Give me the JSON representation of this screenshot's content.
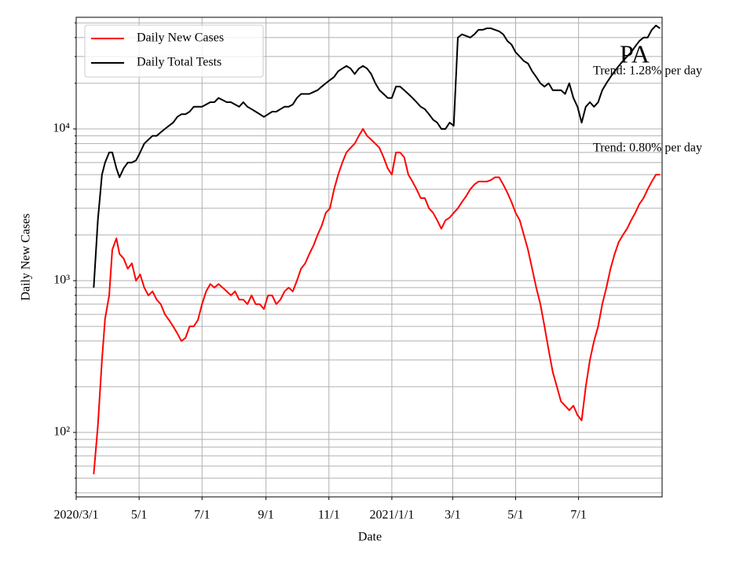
{
  "chart_data": {
    "type": "line",
    "title": "PA",
    "xlabel": "Date",
    "ylabel": "Daily New Cases",
    "annotations": [
      "Trend: 1.28% per day",
      "Trend: 0.80% per day"
    ],
    "log_y": true,
    "grid": true,
    "legend": "upper left",
    "x": [
      "2020-03-18",
      "2020-03-22",
      "2020-03-26",
      "2020-03-29",
      "2020-04-02",
      "2020-04-05",
      "2020-04-09",
      "2020-04-12",
      "2020-04-16",
      "2020-04-20",
      "2020-04-24",
      "2020-04-28",
      "2020-05-02",
      "2020-05-06",
      "2020-05-10",
      "2020-05-14",
      "2020-05-18",
      "2020-05-22",
      "2020-05-26",
      "2020-05-30",
      "2020-06-03",
      "2020-06-07",
      "2020-06-11",
      "2020-06-15",
      "2020-06-19",
      "2020-06-23",
      "2020-06-27",
      "2020-07-01",
      "2020-07-05",
      "2020-07-09",
      "2020-07-13",
      "2020-07-17",
      "2020-07-21",
      "2020-07-25",
      "2020-07-29",
      "2020-08-02",
      "2020-08-06",
      "2020-08-10",
      "2020-08-14",
      "2020-08-18",
      "2020-08-22",
      "2020-08-26",
      "2020-08-30",
      "2020-09-03",
      "2020-09-07",
      "2020-09-11",
      "2020-09-15",
      "2020-09-19",
      "2020-09-23",
      "2020-09-27",
      "2020-10-01",
      "2020-10-05",
      "2020-10-09",
      "2020-10-13",
      "2020-10-17",
      "2020-10-21",
      "2020-10-25",
      "2020-10-29",
      "2020-11-02",
      "2020-11-06",
      "2020-11-10",
      "2020-11-14",
      "2020-11-18",
      "2020-11-22",
      "2020-11-26",
      "2020-11-30",
      "2020-12-04",
      "2020-12-08",
      "2020-12-12",
      "2020-12-16",
      "2020-12-20",
      "2020-12-24",
      "2020-12-28",
      "2021-01-01",
      "2021-01-05",
      "2021-01-09",
      "2021-01-13",
      "2021-01-17",
      "2021-01-21",
      "2021-01-25",
      "2021-01-29",
      "2021-02-02",
      "2021-02-06",
      "2021-02-10",
      "2021-02-14",
      "2021-02-18",
      "2021-02-22",
      "2021-02-26",
      "2021-03-02",
      "2021-03-06",
      "2021-03-10",
      "2021-03-14",
      "2021-03-18",
      "2021-03-22",
      "2021-03-26",
      "2021-03-30",
      "2021-04-03",
      "2021-04-07",
      "2021-04-11",
      "2021-04-15",
      "2021-04-19",
      "2021-04-23",
      "2021-04-27",
      "2021-05-01",
      "2021-05-05",
      "2021-05-09",
      "2021-05-13",
      "2021-05-17",
      "2021-05-21",
      "2021-05-25",
      "2021-05-29",
      "2021-06-02",
      "2021-06-06",
      "2021-06-10",
      "2021-06-14",
      "2021-06-18",
      "2021-06-22",
      "2021-06-26",
      "2021-06-30",
      "2021-07-04",
      "2021-07-08",
      "2021-07-12",
      "2021-07-16",
      "2021-07-20",
      "2021-07-24",
      "2021-07-28",
      "2021-08-01",
      "2021-08-05",
      "2021-08-09",
      "2021-08-13",
      "2021-08-17",
      "2021-08-21",
      "2021-08-25",
      "2021-08-29",
      "2021-09-02",
      "2021-09-06",
      "2021-09-10",
      "2021-09-14",
      "2021-09-18"
    ],
    "series": [
      {
        "name": "Daily New Cases",
        "color": "#ff0000",
        "values": [
          53,
          110,
          300,
          560,
          800,
          1600,
          1900,
          1500,
          1400,
          1200,
          1300,
          1000,
          1100,
          900,
          800,
          850,
          750,
          700,
          600,
          550,
          500,
          450,
          400,
          420,
          500,
          500,
          550,
          700,
          850,
          950,
          900,
          950,
          900,
          850,
          800,
          850,
          750,
          750,
          700,
          800,
          700,
          700,
          650,
          800,
          800,
          700,
          750,
          850,
          900,
          850,
          1000,
          1200,
          1300,
          1500,
          1700,
          2000,
          2300,
          2800,
          3000,
          4000,
          5000,
          6000,
          7000,
          7500,
          8000,
          9000,
          10000,
          9000,
          8500,
          8000,
          7500,
          6500,
          5500,
          5000,
          7000,
          7000,
          6500,
          5000,
          4500,
          4000,
          3500,
          3500,
          3000,
          2800,
          2500,
          2200,
          2500,
          2600,
          2800,
          3000,
          3300,
          3600,
          4000,
          4300,
          4500,
          4500,
          4500,
          4600,
          4800,
          4800,
          4300,
          3800,
          3300,
          2800,
          2500,
          2000,
          1600,
          1200,
          900,
          700,
          500,
          350,
          250,
          200,
          160,
          150,
          140,
          150,
          130,
          120,
          200,
          300,
          400,
          500,
          700,
          900,
          1200,
          1500,
          1800,
          2000,
          2200,
          2500,
          2800,
          3200,
          3500,
          4000,
          4500,
          5000,
          5000
        ]
      },
      {
        "name": "Daily Total Tests",
        "color": "#000000",
        "values": [
          900,
          2500,
          5000,
          6000,
          7000,
          7000,
          5500,
          4800,
          5500,
          6000,
          6000,
          6200,
          7000,
          8000,
          8500,
          9000,
          9000,
          9500,
          10000,
          10500,
          11000,
          12000,
          12500,
          12500,
          13000,
          14000,
          14000,
          14000,
          14500,
          15000,
          15000,
          16000,
          15500,
          15000,
          15000,
          14500,
          14000,
          15000,
          14000,
          13500,
          13000,
          12500,
          12000,
          12500,
          13000,
          13000,
          13500,
          14000,
          14000,
          14500,
          16000,
          17000,
          17000,
          17000,
          17500,
          18000,
          19000,
          20000,
          21000,
          22000,
          24000,
          25000,
          26000,
          25000,
          23000,
          25000,
          26000,
          25000,
          23000,
          20000,
          18000,
          17000,
          16000,
          16000,
          19000,
          19000,
          18000,
          17000,
          16000,
          15000,
          14000,
          13500,
          12500,
          11500,
          11000,
          10000,
          10000,
          11000,
          10500,
          40000,
          42000,
          41000,
          40000,
          42000,
          45000,
          45000,
          46000,
          46000,
          45000,
          44000,
          42000,
          38000,
          36000,
          32000,
          30000,
          28000,
          27000,
          24000,
          22000,
          20000,
          19000,
          20000,
          18000,
          18000,
          18000,
          17000,
          20000,
          16000,
          14000,
          11000,
          14000,
          15000,
          14000,
          15000,
          18000,
          20000,
          22000,
          24000,
          26000,
          28000,
          30000,
          32000,
          35000,
          38000,
          40000,
          40000,
          45000,
          48000,
          46000
        ]
      }
    ],
    "xlim": [
      "2020-03-01",
      "2021-09-20"
    ],
    "xticks": [
      {
        "value": "2020-03-01",
        "label": "2020/3/1"
      },
      {
        "value": "2020-05-01",
        "label": "5/1"
      },
      {
        "value": "2020-07-01",
        "label": "7/1"
      },
      {
        "value": "2020-09-01",
        "label": "9/1"
      },
      {
        "value": "2020-11-01",
        "label": "11/1"
      },
      {
        "value": "2021-01-01",
        "label": "2021/1/1"
      },
      {
        "value": "2021-03-01",
        "label": "3/1"
      },
      {
        "value": "2021-05-01",
        "label": "5/1"
      },
      {
        "value": "2021-07-01",
        "label": "7/1"
      }
    ],
    "ylim": [
      37.6,
      54400
    ],
    "yticks": [
      {
        "value": 100,
        "label": "10²"
      },
      {
        "value": 1000,
        "label": "10³"
      },
      {
        "value": 10000,
        "label": "10⁴"
      }
    ],
    "minor_yticks": [
      40,
      50,
      60,
      70,
      80,
      90,
      200,
      300,
      400,
      500,
      600,
      700,
      800,
      900,
      2000,
      3000,
      4000,
      5000,
      6000,
      7000,
      8000,
      9000,
      20000,
      30000,
      40000,
      50000
    ]
  }
}
